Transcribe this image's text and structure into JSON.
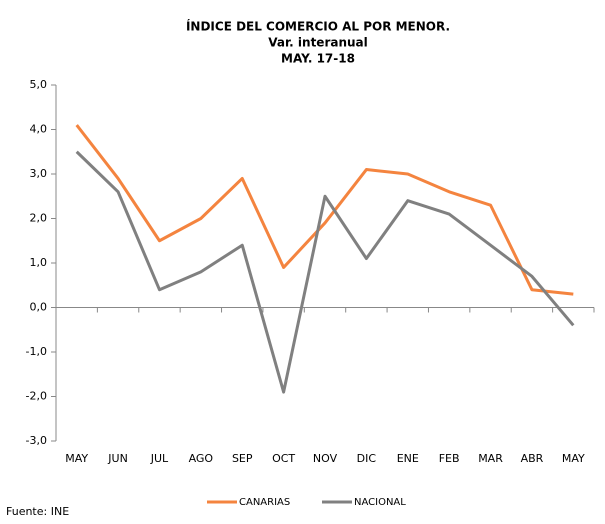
{
  "chart_data": {
    "type": "line",
    "title": "ÍNDICE  DEL COMERCIO  AL POR MENOR.",
    "subtitle": "Var. interanual",
    "period": "MAY. 17-18",
    "categories": [
      "MAY",
      "JUN",
      "JUL",
      "AGO",
      "SEP",
      "OCT",
      "NOV",
      "DIC",
      "ENE",
      "FEB",
      "MAR",
      "ABR",
      "MAY"
    ],
    "series": [
      {
        "name": "CANARIAS",
        "color": "#f4843f",
        "values": [
          4.1,
          2.9,
          1.5,
          2.0,
          2.9,
          0.9,
          1.9,
          3.1,
          3.0,
          2.6,
          2.3,
          0.4,
          0.3
        ]
      },
      {
        "name": "NACIONAL",
        "color": "#808080",
        "values": [
          3.5,
          2.6,
          0.4,
          0.8,
          1.4,
          -1.9,
          2.5,
          1.1,
          2.4,
          2.1,
          1.4,
          0.7,
          -0.4
        ]
      }
    ],
    "ylim": [
      -3,
      5
    ],
    "yticks": [
      {
        "value": -3,
        "label": "-3,0"
      },
      {
        "value": -2,
        "label": "-2,0"
      },
      {
        "value": -1,
        "label": "-1,0"
      },
      {
        "value": 0,
        "label": "0,0"
      },
      {
        "value": 1,
        "label": "1,0"
      },
      {
        "value": 2,
        "label": "2,0"
      },
      {
        "value": 3,
        "label": "3,0"
      },
      {
        "value": 4,
        "label": "4,0"
      },
      {
        "value": 5,
        "label": "5,0"
      }
    ],
    "grid": false,
    "legend": "bottom",
    "source": "Fuente: INE"
  }
}
